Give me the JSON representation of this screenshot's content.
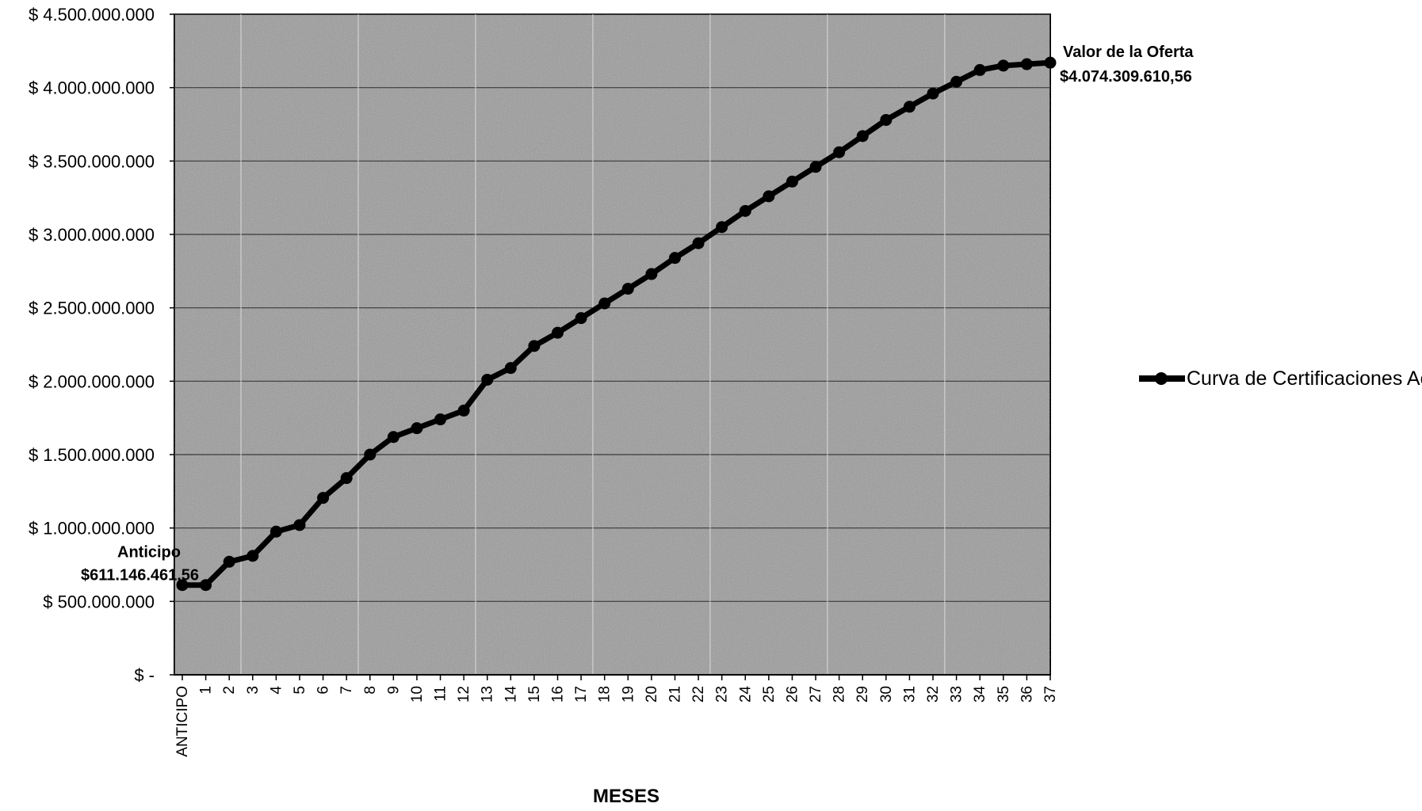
{
  "chart_data": {
    "type": "line",
    "title": "",
    "xlabel": "MESES",
    "ylabel": "",
    "ylim": [
      0,
      4500000000
    ],
    "yticks": [
      {
        "value": 0,
        "label": "$ -"
      },
      {
        "value": 500000000,
        "label": "$ 500.000.000"
      },
      {
        "value": 1000000000,
        "label": "$ 1.000.000.000"
      },
      {
        "value": 1500000000,
        "label": "$ 1.500.000.000"
      },
      {
        "value": 2000000000,
        "label": "$ 2.000.000.000"
      },
      {
        "value": 2500000000,
        "label": "$ 2.500.000.000"
      },
      {
        "value": 3000000000,
        "label": "$ 3.000.000.000"
      },
      {
        "value": 3500000000,
        "label": "$ 3.500.000.000"
      },
      {
        "value": 4000000000,
        "label": "$ 4.000.000.000"
      },
      {
        "value": 4500000000,
        "label": "$ 4.500.000.000"
      }
    ],
    "categories": [
      "ANTICIPO",
      "1",
      "2",
      "3",
      "4",
      "5",
      "6",
      "7",
      "8",
      "9",
      "10",
      "11",
      "12",
      "13",
      "14",
      "15",
      "16",
      "17",
      "18",
      "19",
      "20",
      "21",
      "22",
      "23",
      "24",
      "25",
      "26",
      "27",
      "28",
      "29",
      "30",
      "31",
      "32",
      "33",
      "34",
      "35",
      "36",
      "37"
    ],
    "grid": true,
    "legend_position": "right",
    "series": [
      {
        "name": "Curva de Certificaciones Acumulada",
        "color": "#000000",
        "values": [
          611146461,
          611146461,
          770000000,
          810000000,
          975000000,
          1020000000,
          1205000000,
          1340000000,
          1500000000,
          1620000000,
          1680000000,
          1740000000,
          1800000000,
          2010000000,
          2090000000,
          2240000000,
          2330000000,
          2430000000,
          2530000000,
          2630000000,
          2730000000,
          2840000000,
          2940000000,
          3050000000,
          3160000000,
          3260000000,
          3360000000,
          3460000000,
          3560000000,
          3670000000,
          3780000000,
          3870000000,
          3960000000,
          4040000000,
          4120000000,
          4150000000,
          4160000000,
          4170000000
        ]
      }
    ],
    "annotations": [
      {
        "title": "Anticipo",
        "value": "$611.146.461,56",
        "category": "ANTICIPO"
      },
      {
        "title": "Valor de la Oferta",
        "value": "$4.074.309.610,56",
        "category": "37"
      }
    ],
    "plot_background": "#9a9a9a"
  }
}
